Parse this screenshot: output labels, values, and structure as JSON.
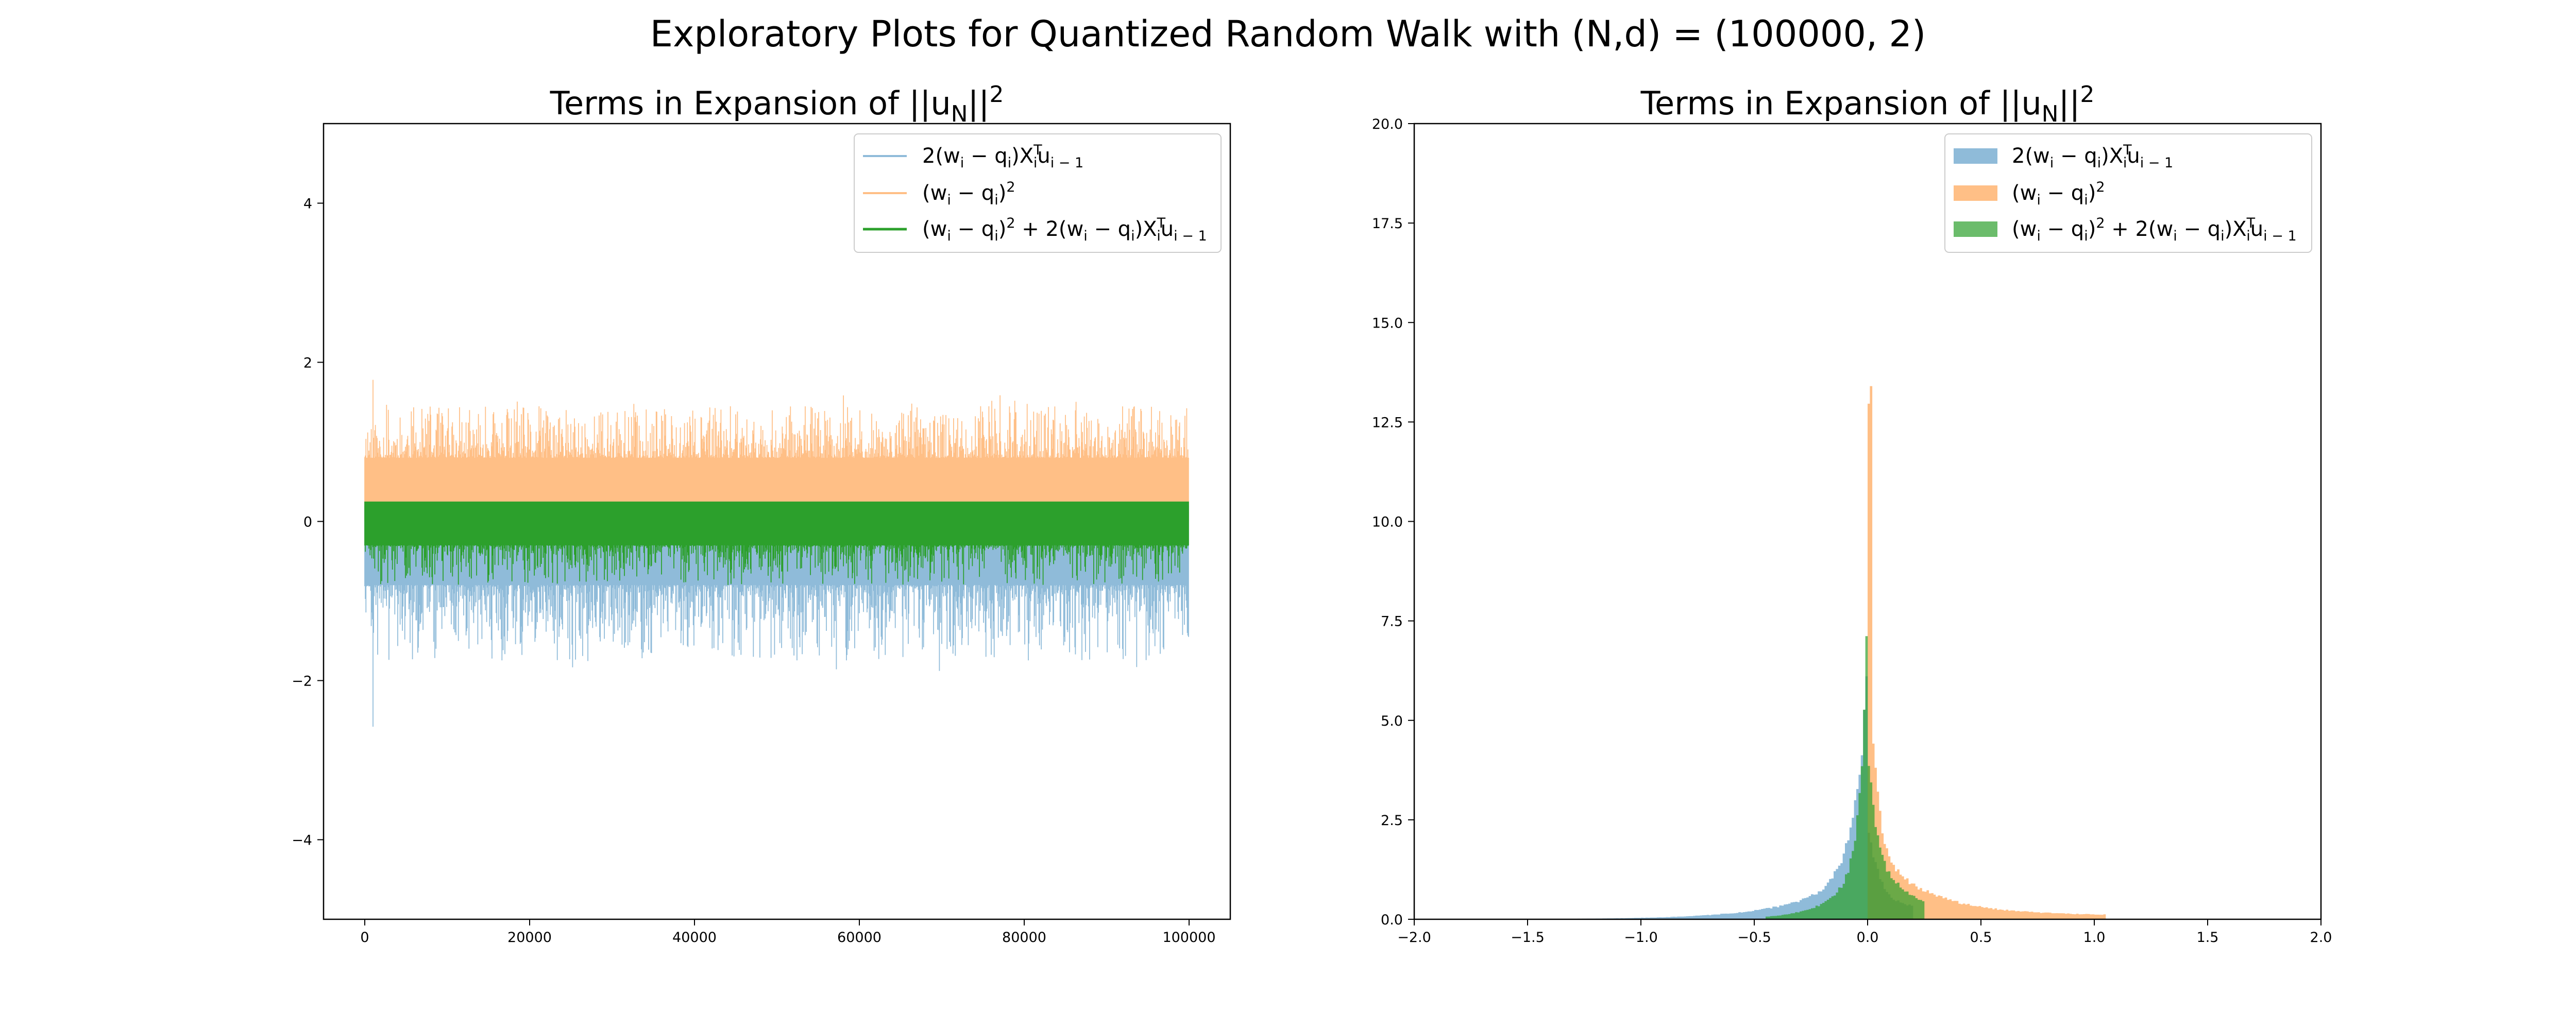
{
  "figure": {
    "suptitle": "Exploratory Plots for Quantized Random Walk with (N,d) = (100000, 2)"
  },
  "colors": {
    "blue": "#1f77b4",
    "orange": "#ff7f0e",
    "green": "#2ca02c"
  },
  "legend": {
    "entry1": {
      "pre": "2(w",
      "s1": "i",
      "mid1": " − q",
      "s2": "i",
      "mid2": ")X",
      "sup": "T",
      "s3": "i",
      "mid3": "u",
      "s4": "i − 1"
    },
    "entry2": {
      "pre": "(w",
      "s1": "i",
      "mid1": " − q",
      "s2": "i",
      "post": ")",
      "sup": "2"
    },
    "entry3": {
      "pre": "(w",
      "s1": "i",
      "mid1": " − q",
      "s2": "i",
      "mid2": ")",
      "sup1": "2",
      "mid3": " + 2(w",
      "s3": "i",
      "mid4": " − q",
      "s4": "i",
      "mid5": ")X",
      "sup2": "T",
      "s5": "i",
      "mid6": "u",
      "s6": "i − 1"
    }
  },
  "chart_data": [
    {
      "type": "line",
      "title": {
        "pre": "Terms in Expansion of ||u",
        "sub": "N",
        "post": "||",
        "sup": "2"
      },
      "legend_position": "upper right",
      "xlim": [
        -5000,
        105000
      ],
      "ylim": [
        -5,
        5
      ],
      "xticks": [
        0,
        20000,
        40000,
        60000,
        80000,
        100000
      ],
      "xtick_labels": [
        "0",
        "20000",
        "40000",
        "60000",
        "80000",
        "100000"
      ],
      "yticks": [
        -4,
        -2,
        0,
        2,
        4
      ],
      "ytick_labels": [
        "−4",
        "−2",
        "0",
        "2",
        "4"
      ],
      "n_points": 100000,
      "series": [
        {
          "key": "cross_term",
          "color": "#1f77b4",
          "alpha": 0.5,
          "band_center": [
            -0.8,
            0.2
          ],
          "spike_min": -2.58,
          "spike_min_at": 1000
        },
        {
          "key": "squared_term",
          "color": "#ff7f0e",
          "alpha": 0.5,
          "band_center": [
            0,
            0.8
          ],
          "spike_max": 1.78,
          "spike_max_at": 1000
        },
        {
          "key": "sum",
          "color": "#2ca02c",
          "alpha": 1.0,
          "band_center": [
            -0.3,
            0.25
          ],
          "max": 0.25,
          "min": -0.8
        }
      ]
    },
    {
      "type": "histogram",
      "title": {
        "pre": "Terms in Expansion of ||u",
        "sub": "N",
        "post": "||",
        "sup": "2"
      },
      "legend_position": "upper right",
      "xlim": [
        -2,
        2
      ],
      "ylim": [
        0,
        20
      ],
      "xticks": [
        -2,
        -1.5,
        -1,
        -0.5,
        0,
        0.5,
        1,
        1.5,
        2
      ],
      "xtick_labels": [
        "−2.0",
        "−1.5",
        "−1.0",
        "−0.5",
        "0.0",
        "0.5",
        "1.0",
        "1.5",
        "2.0"
      ],
      "yticks": [
        0,
        2.5,
        5,
        7.5,
        10,
        12.5,
        15,
        17.5,
        20
      ],
      "ytick_labels": [
        "0.0",
        "2.5",
        "5.0",
        "7.5",
        "10.0",
        "12.5",
        "15.0",
        "17.5",
        "20.0"
      ],
      "series": [
        {
          "key": "cross_term",
          "color": "#1f77b4",
          "alpha": 0.5,
          "range": [
            -1.4,
            0.2
          ],
          "peak": 5.0,
          "peak_at": 0.0
        },
        {
          "key": "squared_term",
          "color": "#ff7f0e",
          "alpha": 0.5,
          "range": [
            0.0,
            1.05
          ],
          "peak": 13.8,
          "peak_at": 0.0
        },
        {
          "key": "sum",
          "color": "#2ca02c",
          "alpha": 0.7,
          "range": [
            -0.45,
            0.25
          ],
          "peak": 6.4,
          "peak_at": 0.0
        }
      ]
    }
  ]
}
